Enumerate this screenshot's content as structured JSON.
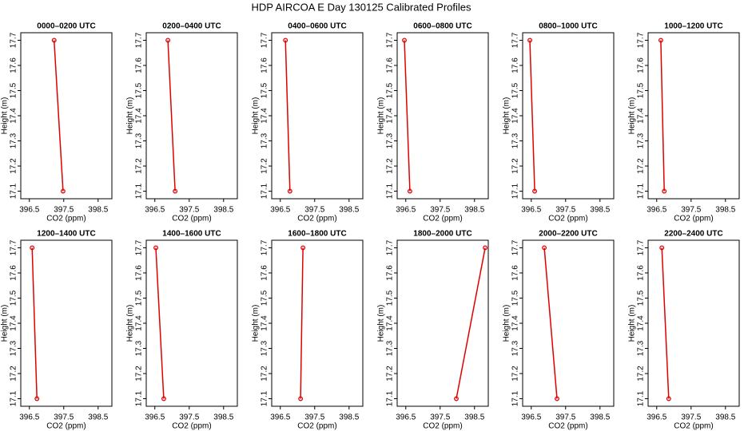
{
  "title": "HDP AIRCOA E  Day 130125  Calibrated Profiles",
  "chart_data": [
    {
      "type": "line",
      "title": "0000–0200 UTC",
      "xlabel": "CO2 (ppm)",
      "ylabel": "Height (m)",
      "x": [
        397.48,
        397.22
      ],
      "values": [
        17.1,
        17.7
      ],
      "color": "#e00000",
      "xlim": [
        396.25,
        398.9
      ],
      "ylim": [
        17.07,
        17.73
      ],
      "xticks": [
        396.5,
        397.5,
        398.5
      ],
      "yticks": [
        17.1,
        17.2,
        17.3,
        17.4,
        17.5,
        17.6,
        17.7
      ]
    },
    {
      "type": "line",
      "title": "0200–0400 UTC",
      "xlabel": "CO2 (ppm)",
      "ylabel": "Height (m)",
      "x": [
        397.09,
        396.88
      ],
      "values": [
        17.1,
        17.7
      ],
      "color": "#e00000",
      "xlim": [
        396.25,
        398.9
      ],
      "ylim": [
        17.07,
        17.73
      ],
      "xticks": [
        396.5,
        397.5,
        398.5
      ],
      "yticks": [
        17.1,
        17.2,
        17.3,
        17.4,
        17.5,
        17.6,
        17.7
      ]
    },
    {
      "type": "line",
      "title": "0400–0600 UTC",
      "xlabel": "CO2 (ppm)",
      "ylabel": "Height (m)",
      "x": [
        396.78,
        396.65
      ],
      "values": [
        17.1,
        17.7
      ],
      "color": "#e00000",
      "xlim": [
        396.25,
        398.9
      ],
      "ylim": [
        17.07,
        17.73
      ],
      "xticks": [
        396.5,
        397.5,
        398.5
      ],
      "yticks": [
        17.1,
        17.2,
        17.3,
        17.4,
        17.5,
        17.6,
        17.7
      ]
    },
    {
      "type": "line",
      "title": "0600–0800 UTC",
      "xlabel": "CO2 (ppm)",
      "ylabel": "Height (m)",
      "x": [
        396.62,
        396.46
      ],
      "values": [
        17.1,
        17.7
      ],
      "color": "#e00000",
      "xlim": [
        396.25,
        398.9
      ],
      "ylim": [
        17.07,
        17.73
      ],
      "xticks": [
        396.5,
        397.5,
        398.5
      ],
      "yticks": [
        17.1,
        17.2,
        17.3,
        17.4,
        17.5,
        17.6,
        17.7
      ]
    },
    {
      "type": "line",
      "title": "0800–1000 UTC",
      "xlabel": "CO2 (ppm)",
      "ylabel": "Height (m)",
      "x": [
        396.6,
        396.46
      ],
      "values": [
        17.1,
        17.7
      ],
      "color": "#e00000",
      "xlim": [
        396.25,
        398.9
      ],
      "ylim": [
        17.07,
        17.73
      ],
      "xticks": [
        396.5,
        397.5,
        398.5
      ],
      "yticks": [
        17.1,
        17.2,
        17.3,
        17.4,
        17.5,
        17.6,
        17.7
      ]
    },
    {
      "type": "line",
      "title": "1000–1200 UTC",
      "xlabel": "CO2 (ppm)",
      "ylabel": "Height (m)",
      "x": [
        396.72,
        396.62
      ],
      "values": [
        17.1,
        17.7
      ],
      "color": "#e00000",
      "xlim": [
        396.25,
        398.9
      ],
      "ylim": [
        17.07,
        17.73
      ],
      "xticks": [
        396.5,
        397.5,
        398.5
      ],
      "yticks": [
        17.1,
        17.2,
        17.3,
        17.4,
        17.5,
        17.6,
        17.7
      ]
    },
    {
      "type": "line",
      "title": "1200–1400 UTC",
      "xlabel": "CO2 (ppm)",
      "ylabel": "Height (m)",
      "x": [
        396.72,
        396.58
      ],
      "values": [
        17.1,
        17.7
      ],
      "color": "#e00000",
      "xlim": [
        396.25,
        398.9
      ],
      "ylim": [
        17.07,
        17.73
      ],
      "xticks": [
        396.5,
        397.5,
        398.5
      ],
      "yticks": [
        17.1,
        17.2,
        17.3,
        17.4,
        17.5,
        17.6,
        17.7
      ]
    },
    {
      "type": "line",
      "title": "1400–1600 UTC",
      "xlabel": "CO2 (ppm)",
      "ylabel": "Height (m)",
      "x": [
        396.76,
        396.53
      ],
      "values": [
        17.1,
        17.7
      ],
      "color": "#e00000",
      "xlim": [
        396.25,
        398.9
      ],
      "ylim": [
        17.07,
        17.73
      ],
      "xticks": [
        396.5,
        397.5,
        398.5
      ],
      "yticks": [
        17.1,
        17.2,
        17.3,
        17.4,
        17.5,
        17.6,
        17.7
      ]
    },
    {
      "type": "line",
      "title": "1600–1800 UTC",
      "xlabel": "CO2 (ppm)",
      "ylabel": "Height (m)",
      "x": [
        397.09,
        397.16
      ],
      "values": [
        17.1,
        17.7
      ],
      "color": "#e00000",
      "xlim": [
        396.25,
        398.9
      ],
      "ylim": [
        17.07,
        17.73
      ],
      "xticks": [
        396.5,
        397.5,
        398.5
      ],
      "yticks": [
        17.1,
        17.2,
        17.3,
        17.4,
        17.5,
        17.6,
        17.7
      ]
    },
    {
      "type": "line",
      "title": "1800–2000 UTC",
      "xlabel": "CO2 (ppm)",
      "ylabel": "Height (m)",
      "x": [
        397.97,
        398.81
      ],
      "values": [
        17.1,
        17.7
      ],
      "color": "#e00000",
      "xlim": [
        396.25,
        398.9
      ],
      "ylim": [
        17.07,
        17.73
      ],
      "xticks": [
        396.5,
        397.5,
        398.5
      ],
      "yticks": [
        17.1,
        17.2,
        17.3,
        17.4,
        17.5,
        17.6,
        17.7
      ]
    },
    {
      "type": "line",
      "title": "2000–2200 UTC",
      "xlabel": "CO2 (ppm)",
      "ylabel": "Height (m)",
      "x": [
        397.25,
        396.88
      ],
      "values": [
        17.1,
        17.7
      ],
      "color": "#e00000",
      "xlim": [
        396.25,
        398.9
      ],
      "ylim": [
        17.07,
        17.73
      ],
      "xticks": [
        396.5,
        397.5,
        398.5
      ],
      "yticks": [
        17.1,
        17.2,
        17.3,
        17.4,
        17.5,
        17.6,
        17.7
      ]
    },
    {
      "type": "line",
      "title": "2200–2400 UTC",
      "xlabel": "CO2 (ppm)",
      "ylabel": "Height (m)",
      "x": [
        396.85,
        396.65
      ],
      "values": [
        17.1,
        17.7
      ],
      "color": "#e00000",
      "xlim": [
        396.25,
        398.9
      ],
      "ylim": [
        17.07,
        17.73
      ],
      "xticks": [
        396.5,
        397.5,
        398.5
      ],
      "yticks": [
        17.1,
        17.2,
        17.3,
        17.4,
        17.5,
        17.6,
        17.7
      ]
    }
  ]
}
